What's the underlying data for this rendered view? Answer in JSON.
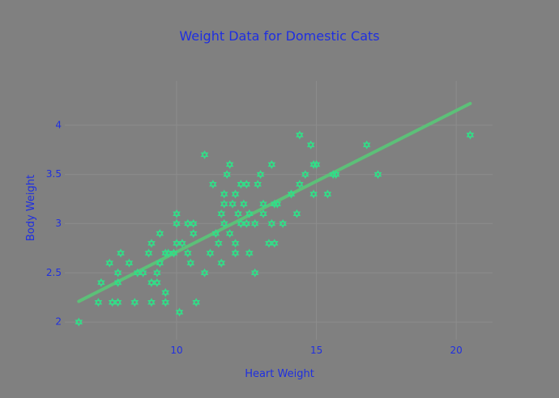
{
  "chart_data": {
    "type": "scatter",
    "title": "Weight Data for Domestic Cats",
    "xlabel": "Heart Weight",
    "ylabel": "Body Weight",
    "xlim": [
      6.0,
      21.3
    ],
    "ylim": [
      1.82,
      4.45
    ],
    "xticks": [
      10,
      15,
      20
    ],
    "yticks": [
      2,
      2.5,
      3,
      3.5,
      4
    ],
    "grid": true,
    "colors": {
      "background": "#808080",
      "text": "#1f2fe0",
      "grid": "#8c8c8c",
      "marker": "#33dd88",
      "fit_line": "#5cc078"
    },
    "fit_line": {
      "x": [
        6.5,
        20.5
      ],
      "y": [
        2.21,
        4.22
      ]
    },
    "points": [
      [
        6.5,
        2.0
      ],
      [
        7.2,
        2.2
      ],
      [
        7.3,
        2.4
      ],
      [
        7.6,
        2.6
      ],
      [
        7.7,
        2.2
      ],
      [
        7.9,
        2.2
      ],
      [
        7.9,
        2.4
      ],
      [
        7.9,
        2.5
      ],
      [
        8.0,
        2.7
      ],
      [
        8.3,
        2.6
      ],
      [
        8.5,
        2.2
      ],
      [
        8.6,
        2.5
      ],
      [
        8.8,
        2.5
      ],
      [
        9.0,
        2.7
      ],
      [
        9.1,
        2.8
      ],
      [
        9.1,
        2.2
      ],
      [
        9.1,
        2.4
      ],
      [
        9.3,
        2.5
      ],
      [
        9.3,
        2.4
      ],
      [
        9.4,
        2.6
      ],
      [
        9.4,
        2.9
      ],
      [
        9.6,
        2.2
      ],
      [
        9.6,
        2.3
      ],
      [
        9.6,
        2.7
      ],
      [
        9.7,
        2.7
      ],
      [
        9.9,
        2.7
      ],
      [
        10.0,
        2.8
      ],
      [
        10.0,
        3.0
      ],
      [
        10.0,
        3.1
      ],
      [
        10.1,
        2.1
      ],
      [
        10.2,
        2.8
      ],
      [
        10.4,
        2.7
      ],
      [
        10.4,
        3.0
      ],
      [
        10.5,
        2.6
      ],
      [
        10.6,
        2.9
      ],
      [
        10.6,
        3.0
      ],
      [
        10.7,
        2.2
      ],
      [
        11.0,
        3.7
      ],
      [
        11.0,
        2.5
      ],
      [
        11.2,
        2.7
      ],
      [
        11.3,
        3.4
      ],
      [
        11.4,
        2.9
      ],
      [
        11.5,
        2.8
      ],
      [
        11.6,
        3.1
      ],
      [
        11.6,
        2.6
      ],
      [
        11.7,
        3.0
      ],
      [
        11.7,
        3.2
      ],
      [
        11.7,
        3.3
      ],
      [
        11.8,
        3.5
      ],
      [
        11.9,
        2.9
      ],
      [
        11.9,
        3.6
      ],
      [
        12.0,
        3.2
      ],
      [
        12.1,
        2.7
      ],
      [
        12.1,
        2.8
      ],
      [
        12.1,
        3.3
      ],
      [
        12.2,
        3.1
      ],
      [
        12.3,
        3.0
      ],
      [
        12.3,
        3.4
      ],
      [
        12.4,
        3.2
      ],
      [
        12.5,
        3.4
      ],
      [
        12.5,
        3.0
      ],
      [
        12.6,
        3.1
      ],
      [
        12.6,
        2.7
      ],
      [
        12.8,
        2.5
      ],
      [
        12.8,
        3.0
      ],
      [
        12.9,
        3.4
      ],
      [
        13.0,
        3.5
      ],
      [
        13.1,
        3.1
      ],
      [
        13.1,
        3.2
      ],
      [
        13.3,
        2.8
      ],
      [
        13.4,
        3.0
      ],
      [
        13.4,
        3.6
      ],
      [
        13.5,
        2.8
      ],
      [
        13.5,
        3.2
      ],
      [
        13.6,
        3.2
      ],
      [
        13.8,
        3.0
      ],
      [
        14.1,
        3.3
      ],
      [
        14.3,
        3.1
      ],
      [
        14.4,
        3.4
      ],
      [
        14.4,
        3.9
      ],
      [
        14.6,
        3.5
      ],
      [
        14.8,
        3.8
      ],
      [
        14.9,
        3.3
      ],
      [
        14.9,
        3.6
      ],
      [
        15.0,
        3.6
      ],
      [
        15.4,
        3.3
      ],
      [
        15.6,
        3.5
      ],
      [
        15.7,
        3.5
      ],
      [
        16.8,
        3.8
      ],
      [
        17.2,
        3.5
      ],
      [
        20.5,
        3.9
      ]
    ]
  }
}
